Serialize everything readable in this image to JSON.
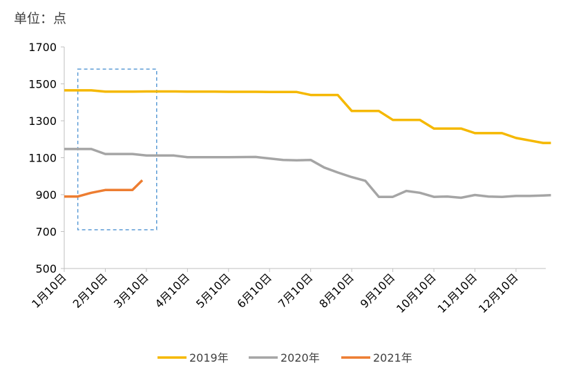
{
  "unit_label": "单位：点",
  "chart_data": {
    "type": "line",
    "title": "",
    "xlabel": "",
    "ylabel": "单位：点",
    "ylim": [
      500,
      1700
    ],
    "yticks": [
      500,
      700,
      900,
      1100,
      1300,
      1500,
      1700
    ],
    "ytick_labels": [
      "500",
      "700",
      "900",
      "1100",
      "1300",
      "1500",
      "1700"
    ],
    "xlim": [
      0,
      11.85
    ],
    "xtick_labels": [
      "1月10日",
      "2月10日",
      "3月10日",
      "4月10日",
      "5月10日",
      "6月10日",
      "7月10日",
      "8月10日",
      "9月10日",
      "10月10日",
      "11月10日",
      "12月10日"
    ],
    "legend_position": "bottom",
    "series": [
      {
        "name": "2019年",
        "color": "#F5B800",
        "x": [
          0,
          0.66,
          1,
          1.66,
          2,
          2.66,
          3,
          3.66,
          4,
          4.66,
          5,
          5.66,
          6,
          6.66,
          7,
          7.66,
          8,
          8.66,
          9,
          9.66,
          10,
          10.66,
          11,
          11.66,
          11.85
        ],
        "y": [
          1465,
          1465,
          1458,
          1458,
          1459,
          1459,
          1458,
          1458,
          1457,
          1457,
          1456,
          1456,
          1440,
          1440,
          1353,
          1353,
          1305,
          1305,
          1258,
          1258,
          1233,
          1233,
          1207,
          1180,
          1180
        ]
      },
      {
        "name": "2020年",
        "color": "#A5A5A5",
        "x": [
          0,
          0.66,
          1,
          1.66,
          2,
          2.66,
          3,
          3.66,
          4,
          4.66,
          5,
          5.33,
          5.66,
          6,
          6.33,
          6.66,
          7,
          7.33,
          7.66,
          8,
          8.33,
          8.66,
          9,
          9.33,
          9.66,
          10,
          10.33,
          10.66,
          11,
          11.33,
          11.66,
          11.85
        ],
        "y": [
          1147,
          1147,
          1120,
          1120,
          1112,
          1112,
          1103,
          1103,
          1103,
          1104,
          1096,
          1088,
          1086,
          1088,
          1047,
          1020,
          995,
          975,
          888,
          888,
          920,
          910,
          888,
          890,
          883,
          898,
          890,
          888,
          893,
          893,
          895,
          897
        ]
      },
      {
        "name": "2021年",
        "color": "#ED7D31",
        "x": [
          0,
          0.33,
          0.66,
          1,
          1.66,
          1.9
        ],
        "y": [
          890,
          890,
          910,
          925,
          925,
          978
        ]
      }
    ],
    "annotations": [
      {
        "type": "dashed-box",
        "x_range": [
          0.33,
          2.25
        ],
        "y_range": [
          710,
          1580
        ],
        "color": "#5B9BD5"
      }
    ]
  }
}
